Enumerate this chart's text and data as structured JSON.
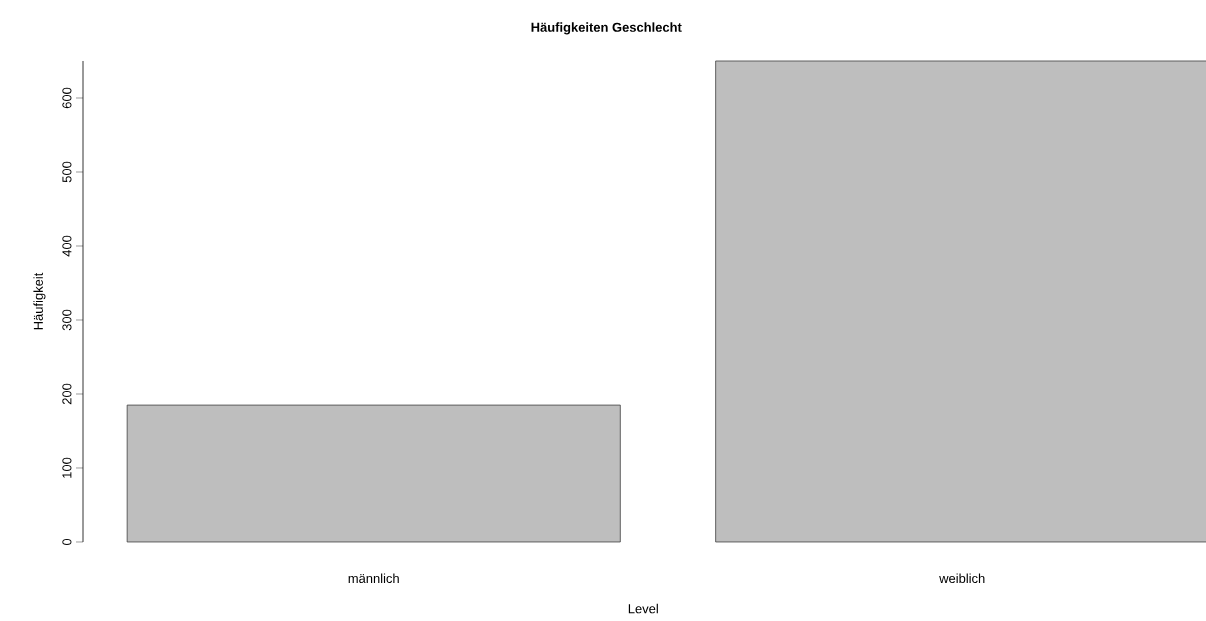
{
  "chart_data": {
    "type": "bar",
    "title": "Häufigkeiten Geschlecht",
    "xlabel": "Level",
    "ylabel": "Häufigkeit",
    "categories": [
      "männlich",
      "weiblich"
    ],
    "values": [
      185,
      650
    ],
    "color": "#bebebe",
    "ylim": [
      0,
      650
    ],
    "yticks": [
      0,
      100,
      200,
      300,
      400,
      500,
      600
    ]
  }
}
